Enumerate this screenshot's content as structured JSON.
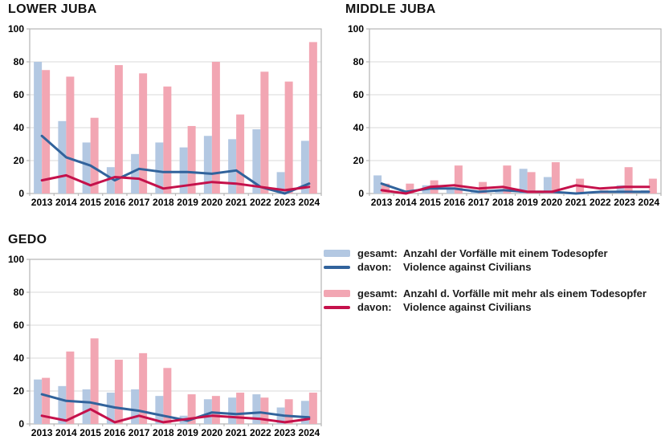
{
  "chart_data": [
    {
      "type": "bar+line",
      "title": "LOWER JUBA",
      "categories": [
        "2013",
        "2014",
        "2015",
        "2016",
        "2017",
        "2018",
        "2019",
        "2020",
        "2021",
        "2022",
        "2023",
        "2024"
      ],
      "ylim": [
        0,
        100
      ],
      "yticks": [
        0,
        20,
        40,
        60,
        80,
        100
      ],
      "grid": true,
      "series": [
        {
          "name": "gesamt: Anzahl der Vorfälle mit einem Todesopfer",
          "type": "bar",
          "color": "#b3c8e2",
          "values": [
            80,
            44,
            31,
            16,
            24,
            31,
            28,
            35,
            33,
            39,
            13,
            32
          ]
        },
        {
          "name": "davon: Violence against Civilians",
          "type": "line",
          "color": "#31639c",
          "values": [
            35,
            22,
            17,
            8,
            15,
            13,
            13,
            12,
            14,
            4,
            0,
            6
          ]
        },
        {
          "name": "gesamt: Anzahl d. Vorfälle mit mehr als einem Todesopfer",
          "type": "bar",
          "color": "#f2a6b3",
          "values": [
            75,
            71,
            46,
            78,
            73,
            65,
            41,
            80,
            48,
            74,
            68,
            92
          ]
        },
        {
          "name": "davon: Violence against Civilians",
          "type": "line",
          "color": "#c5114b",
          "values": [
            8,
            11,
            5,
            10,
            9,
            3,
            5,
            7,
            6,
            4,
            2,
            4
          ]
        }
      ]
    },
    {
      "type": "bar+line",
      "title": "MIDDLE JUBA",
      "categories": [
        "2013",
        "2014",
        "2015",
        "2016",
        "2017",
        "2018",
        "2019",
        "2020",
        "2021",
        "2022",
        "2023",
        "2024"
      ],
      "ylim": [
        0,
        100
      ],
      "yticks": [
        0,
        20,
        40,
        60,
        80,
        100
      ],
      "grid": true,
      "series": [
        {
          "name": "gesamt: Anzahl der Vorfälle mit einem Todesopfer",
          "type": "bar",
          "color": "#b3c8e2",
          "values": [
            11,
            1,
            5,
            3,
            1,
            2,
            15,
            10,
            0,
            1,
            5,
            2
          ]
        },
        {
          "name": "davon: Violence against Civilians",
          "type": "line",
          "color": "#31639c",
          "values": [
            6,
            1,
            3,
            3,
            1,
            2,
            1,
            1,
            0,
            1,
            1,
            1
          ]
        },
        {
          "name": "gesamt: Anzahl d. Vorfälle mit mehr als einem Todesopfer",
          "type": "bar",
          "color": "#f2a6b3",
          "values": [
            6,
            6,
            8,
            17,
            7,
            17,
            13,
            19,
            9,
            2,
            16,
            9
          ]
        },
        {
          "name": "davon: Violence against Civilians",
          "type": "line",
          "color": "#c5114b",
          "values": [
            2,
            0,
            4,
            5,
            3,
            4,
            1,
            1,
            5,
            3,
            4,
            4
          ]
        }
      ]
    },
    {
      "type": "bar+line",
      "title": "GEDO",
      "categories": [
        "2013",
        "2014",
        "2015",
        "2016",
        "2017",
        "2018",
        "2019",
        "2020",
        "2021",
        "2022",
        "2023",
        "2024"
      ],
      "ylim": [
        0,
        100
      ],
      "yticks": [
        0,
        20,
        40,
        60,
        80,
        100
      ],
      "grid": true,
      "series": [
        {
          "name": "gesamt: Anzahl der Vorfälle mit einem Todesopfer",
          "type": "bar",
          "color": "#b3c8e2",
          "values": [
            27,
            23,
            21,
            19,
            21,
            17,
            5,
            15,
            16,
            18,
            10,
            14
          ]
        },
        {
          "name": "davon: Violence against Civilians",
          "type": "line",
          "color": "#31639c",
          "values": [
            18,
            14,
            13,
            10,
            8,
            5,
            2,
            7,
            6,
            7,
            5,
            4
          ]
        },
        {
          "name": "gesamt: Anzahl d. Vorfälle mit mehr als einem Todesopfer",
          "type": "bar",
          "color": "#f2a6b3",
          "values": [
            28,
            44,
            52,
            39,
            43,
            34,
            18,
            17,
            19,
            16,
            15,
            19
          ]
        },
        {
          "name": "davon: Violence against Civilians",
          "type": "line",
          "color": "#c5114b",
          "values": [
            5,
            2,
            9,
            1,
            5,
            1,
            3,
            5,
            4,
            3,
            1,
            3
          ]
        }
      ]
    }
  ],
  "legend": {
    "groups": [
      {
        "items": [
          {
            "swatch": "bar",
            "color": "#b3c8e2",
            "prefix": "gesamt:",
            "label": "Anzahl der Vorfälle mit einem Todesopfer"
          },
          {
            "swatch": "line",
            "color": "#31639c",
            "prefix": "davon:",
            "label": "Violence against Civilians"
          }
        ]
      },
      {
        "items": [
          {
            "swatch": "bar",
            "color": "#f2a6b3",
            "prefix": "gesamt:",
            "label": "Anzahl d. Vorfälle mit mehr als einem Todesopfer"
          },
          {
            "swatch": "line",
            "color": "#c5114b",
            "prefix": "davon:",
            "label": "Violence against Civilians"
          }
        ]
      }
    ]
  },
  "style": {
    "grid_color": "#d9d9d9",
    "border_color": "#b5b5b5",
    "axis_text_color": "#000000"
  }
}
